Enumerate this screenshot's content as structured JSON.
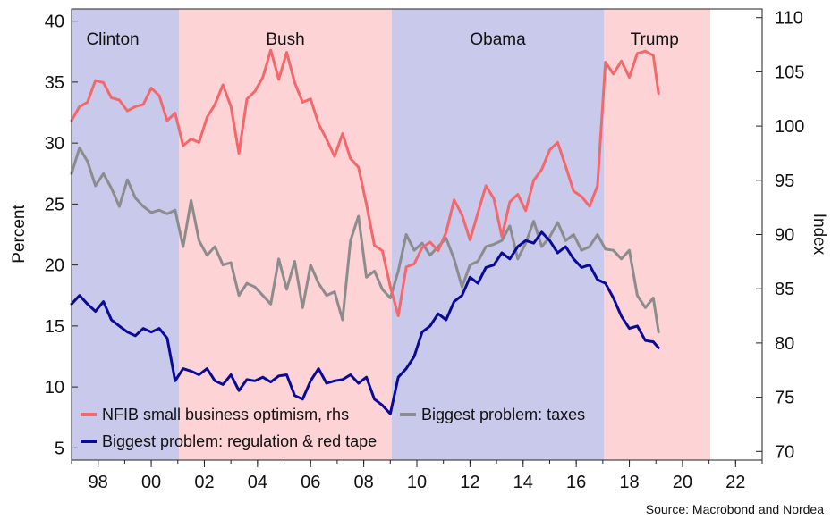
{
  "chart_data": {
    "type": "line",
    "source": "Source: Macrobond and Nordea",
    "ylabel_left": "Percent",
    "ylabel_right": "Index",
    "ylim_left": [
      4,
      41
    ],
    "ylim_right": [
      69.2,
      110.8
    ],
    "yticks_left": [
      5,
      10,
      15,
      20,
      25,
      30,
      35,
      40
    ],
    "yticks_right": [
      70,
      75,
      80,
      85,
      90,
      95,
      100,
      105,
      110
    ],
    "xlim": [
      1997,
      2023
    ],
    "xticks": [
      {
        "value": 1998,
        "label": "98"
      },
      {
        "value": 2000,
        "label": "00"
      },
      {
        "value": 2002,
        "label": "02"
      },
      {
        "value": 2004,
        "label": "04"
      },
      {
        "value": 2006,
        "label": "06"
      },
      {
        "value": 2008,
        "label": "08"
      },
      {
        "value": 2010,
        "label": "10"
      },
      {
        "value": 2012,
        "label": "12"
      },
      {
        "value": 2014,
        "label": "14"
      },
      {
        "value": 2016,
        "label": "16"
      },
      {
        "value": 2018,
        "label": "18"
      },
      {
        "value": 2020,
        "label": "20"
      },
      {
        "value": 2022,
        "label": "22"
      }
    ],
    "periods": [
      {
        "label": "Clinton",
        "start": 1997,
        "end": 2001.05,
        "color": "#c9c9ec"
      },
      {
        "label": "Bush",
        "start": 2001.05,
        "end": 2009.05,
        "color": "#fdd3d6"
      },
      {
        "label": "Obama",
        "start": 2009.05,
        "end": 2017.05,
        "color": "#c9c9ec"
      },
      {
        "label": "Trump",
        "start": 2017.05,
        "end": 2021.05,
        "color": "#fdd3d6"
      }
    ],
    "legend": [
      {
        "name": "NFIB small business optimism, rhs",
        "color": "#f4676b"
      },
      {
        "name": "Biggest problem: taxes",
        "color": "#8c8c8c"
      },
      {
        "name": "Biggest problem: regulation & red tape",
        "color": "#0a0a99"
      }
    ],
    "series": [
      {
        "name": "NFIB small business optimism, rhs",
        "axis": "right",
        "color": "#f4676b",
        "x": [
          1997.0,
          1997.3,
          1997.6,
          1997.9,
          1998.2,
          1998.5,
          1998.8,
          1999.1,
          1999.4,
          1999.7,
          2000.0,
          2000.3,
          2000.6,
          2000.9,
          2001.2,
          2001.5,
          2001.8,
          2002.1,
          2002.4,
          2002.7,
          2003.0,
          2003.3,
          2003.6,
          2003.9,
          2004.2,
          2004.5,
          2004.8,
          2005.1,
          2005.4,
          2005.7,
          2006.0,
          2006.3,
          2006.6,
          2006.9,
          2007.2,
          2007.5,
          2007.8,
          2008.1,
          2008.4,
          2008.7,
          2009.0,
          2009.3,
          2009.6,
          2009.9,
          2010.2,
          2010.5,
          2010.8,
          2011.1,
          2011.4,
          2011.7,
          2012.0,
          2012.3,
          2012.6,
          2012.9,
          2013.2,
          2013.5,
          2013.8,
          2014.1,
          2014.4,
          2014.7,
          2015.0,
          2015.3,
          2015.6,
          2015.9,
          2016.2,
          2016.5,
          2016.8,
          2017.1,
          2017.4,
          2017.7,
          2018.0,
          2018.3,
          2018.6,
          2018.9,
          2019.1
        ],
        "values": [
          100.5,
          101.8,
          102.2,
          104.2,
          104.0,
          102.6,
          102.4,
          101.4,
          101.8,
          102.0,
          103.5,
          102.8,
          100.5,
          101.2,
          98.2,
          98.8,
          98.5,
          100.8,
          102.0,
          103.8,
          101.8,
          97.5,
          102.5,
          103.2,
          104.5,
          107.0,
          104.3,
          106.8,
          104.0,
          102.2,
          102.5,
          100.2,
          98.8,
          97.2,
          99.3,
          97.0,
          96.2,
          92.8,
          89.0,
          88.5,
          85.2,
          82.5,
          87.0,
          87.3,
          88.8,
          89.3,
          88.5,
          90.2,
          93.2,
          91.8,
          89.5,
          92.0,
          94.5,
          93.3,
          89.8,
          93.0,
          93.7,
          92.2,
          95.0,
          96.0,
          97.8,
          98.5,
          96.3,
          94.0,
          93.5,
          92.6,
          94.5,
          105.9,
          104.8,
          106.0,
          104.5,
          106.7,
          106.9,
          106.5,
          103.0
        ]
      },
      {
        "name": "Biggest problem: taxes",
        "axis": "left",
        "color": "#8c8c8c",
        "x": [
          1997.0,
          1997.3,
          1997.6,
          1997.9,
          1998.2,
          1998.5,
          1998.8,
          1999.1,
          1999.4,
          1999.7,
          2000.0,
          2000.3,
          2000.6,
          2000.9,
          2001.2,
          2001.5,
          2001.8,
          2002.1,
          2002.4,
          2002.7,
          2003.0,
          2003.3,
          2003.6,
          2003.9,
          2004.2,
          2004.5,
          2004.8,
          2005.1,
          2005.4,
          2005.7,
          2006.0,
          2006.3,
          2006.6,
          2006.9,
          2007.2,
          2007.5,
          2007.8,
          2008.1,
          2008.4,
          2008.7,
          2009.0,
          2009.3,
          2009.6,
          2009.9,
          2010.2,
          2010.5,
          2010.8,
          2011.1,
          2011.4,
          2011.7,
          2012.0,
          2012.3,
          2012.6,
          2012.9,
          2013.2,
          2013.5,
          2013.8,
          2014.1,
          2014.4,
          2014.7,
          2015.0,
          2015.3,
          2015.6,
          2015.9,
          2016.2,
          2016.5,
          2016.8,
          2017.1,
          2017.4,
          2017.7,
          2018.0,
          2018.3,
          2018.6,
          2018.9,
          2019.1
        ],
        "values": [
          27.5,
          29.6,
          28.5,
          26.5,
          27.5,
          26.3,
          24.8,
          27.0,
          25.5,
          24.8,
          24.3,
          24.5,
          24.2,
          24.5,
          21.5,
          25.3,
          22.0,
          20.8,
          21.5,
          20.0,
          20.2,
          17.5,
          18.5,
          18.2,
          17.5,
          16.8,
          20.5,
          18.0,
          20.3,
          16.5,
          20.0,
          18.5,
          17.5,
          17.8,
          15.5,
          22.0,
          24.0,
          19.0,
          19.5,
          18.0,
          17.3,
          19.5,
          22.5,
          21.2,
          21.8,
          20.8,
          21.5,
          22.2,
          20.5,
          18.2,
          20.0,
          20.3,
          21.5,
          21.7,
          22.0,
          23.2,
          20.5,
          21.8,
          23.6,
          21.5,
          22.3,
          23.5,
          22.0,
          22.5,
          21.2,
          21.5,
          22.5,
          21.3,
          21.2,
          20.5,
          21.2,
          17.5,
          16.5,
          17.3,
          14.5
        ]
      },
      {
        "name": "Biggest problem: regulation & red tape",
        "axis": "left",
        "color": "#0a0a99",
        "x": [
          1997.0,
          1997.3,
          1997.6,
          1997.9,
          1998.2,
          1998.5,
          1998.8,
          1999.1,
          1999.4,
          1999.7,
          2000.0,
          2000.3,
          2000.6,
          2000.9,
          2001.2,
          2001.5,
          2001.8,
          2002.1,
          2002.4,
          2002.7,
          2003.0,
          2003.3,
          2003.6,
          2003.9,
          2004.2,
          2004.5,
          2004.8,
          2005.1,
          2005.4,
          2005.7,
          2006.0,
          2006.3,
          2006.6,
          2006.9,
          2007.2,
          2007.5,
          2007.8,
          2008.1,
          2008.4,
          2008.7,
          2009.0,
          2009.3,
          2009.6,
          2009.9,
          2010.2,
          2010.5,
          2010.8,
          2011.1,
          2011.4,
          2011.7,
          2012.0,
          2012.3,
          2012.6,
          2012.9,
          2013.2,
          2013.5,
          2013.8,
          2014.1,
          2014.4,
          2014.7,
          2015.0,
          2015.3,
          2015.6,
          2015.9,
          2016.2,
          2016.5,
          2016.8,
          2017.1,
          2017.4,
          2017.7,
          2018.0,
          2018.3,
          2018.6,
          2018.9,
          2019.1
        ],
        "values": [
          16.8,
          17.5,
          16.8,
          16.2,
          17.0,
          15.5,
          15.0,
          14.5,
          14.2,
          14.8,
          14.5,
          14.8,
          14.0,
          10.5,
          11.5,
          11.3,
          11.0,
          11.5,
          10.5,
          10.2,
          11.0,
          9.7,
          10.6,
          10.5,
          10.8,
          10.4,
          10.9,
          11.0,
          9.3,
          9.0,
          10.5,
          11.5,
          10.3,
          10.5,
          10.6,
          11.0,
          10.3,
          10.8,
          9.0,
          8.5,
          7.8,
          10.8,
          11.5,
          12.5,
          14.5,
          15.0,
          16.0,
          15.5,
          17.0,
          17.5,
          19.0,
          18.5,
          19.8,
          20.0,
          21.0,
          20.5,
          21.5,
          22.0,
          21.8,
          22.7,
          22.0,
          21.0,
          21.5,
          20.5,
          19.8,
          20.0,
          18.8,
          18.5,
          17.3,
          15.8,
          14.8,
          15.0,
          13.8,
          13.7,
          13.2
        ]
      }
    ]
  }
}
